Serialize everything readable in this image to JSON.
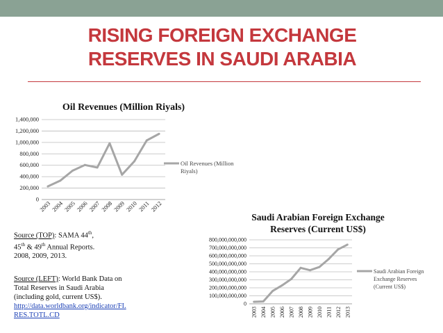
{
  "slide": {
    "title_line1": "RISING FOREIGN EXCHANGE",
    "title_line2": "RESERVES IN SAUDI ARABIA",
    "colors": {
      "title": "#c4383d",
      "topbar": "#8aa294",
      "series": "#a6a6a6",
      "link": "#1a3fb5"
    }
  },
  "notes": {
    "source_top_label": "Source (TOP)",
    "source_top_text_1": ": SAMA 44",
    "source_top_sup_1": "th",
    "source_top_text_2": ",",
    "source_top_text_3": "45",
    "source_top_sup_2": "th",
    "source_top_text_4": " & 49",
    "source_top_sup_3": "th",
    "source_top_text_5": " Annual Reports.",
    "source_top_text_6": "2008, 2009, 2013.",
    "source_left_label": "Source (LEFT)",
    "source_left_text_1": ": World Bank Data on",
    "source_left_text_2": "Total Reserves in Saudi Arabia",
    "source_left_text_3": "(including gold, current US$).",
    "source_left_link_1": "http://data.worldbank.org/indicator/FI.",
    "source_left_link_2": "RES.TOTL.CD"
  },
  "chart_data": [
    {
      "type": "line",
      "title": "Oil Revenues (Million Riyals)",
      "x": [
        "2003",
        "2004",
        "2005",
        "2006",
        "2007",
        "2008",
        "2009",
        "2010",
        "2011",
        "2012"
      ],
      "series": [
        {
          "name": "Oil Revenues (Million Riyals)",
          "values": [
            230000,
            330000,
            505000,
            605000,
            560000,
            985000,
            435000,
            670000,
            1035000,
            1150000
          ]
        }
      ],
      "yticks": [
        "0",
        "200,000",
        "400,000",
        "600,000",
        "800,000",
        "1,000,000",
        "1,200,000",
        "1,400,000"
      ],
      "ylim": [
        0,
        1400000
      ],
      "grid": true,
      "legend": "right"
    },
    {
      "type": "line",
      "title_line1": "Saudi Arabian Foreign Exchange",
      "title_line2": "Reserves (Current US$)",
      "x": [
        "2003",
        "2004",
        "2005",
        "2006",
        "2007",
        "2008",
        "2009",
        "2010",
        "2011",
        "2012",
        "2013"
      ],
      "series": [
        {
          "name": "Saudi Arabian Foreign Exchange Reserves (Current US$)",
          "values": [
            25000000000,
            30000000000,
            160000000000,
            230000000000,
            310000000000,
            450000000000,
            420000000000,
            460000000000,
            560000000000,
            680000000000,
            740000000000
          ]
        }
      ],
      "yticks": [
        "0",
        "100,000,000,000",
        "200,000,000,000",
        "300,000,000,000",
        "400,000,000,000",
        "500,000,000,000",
        "600,000,000,000",
        "700,000,000,000",
        "800,000,000,000"
      ],
      "ylim": [
        0,
        800000000000
      ],
      "grid": true,
      "legend": "right"
    }
  ]
}
